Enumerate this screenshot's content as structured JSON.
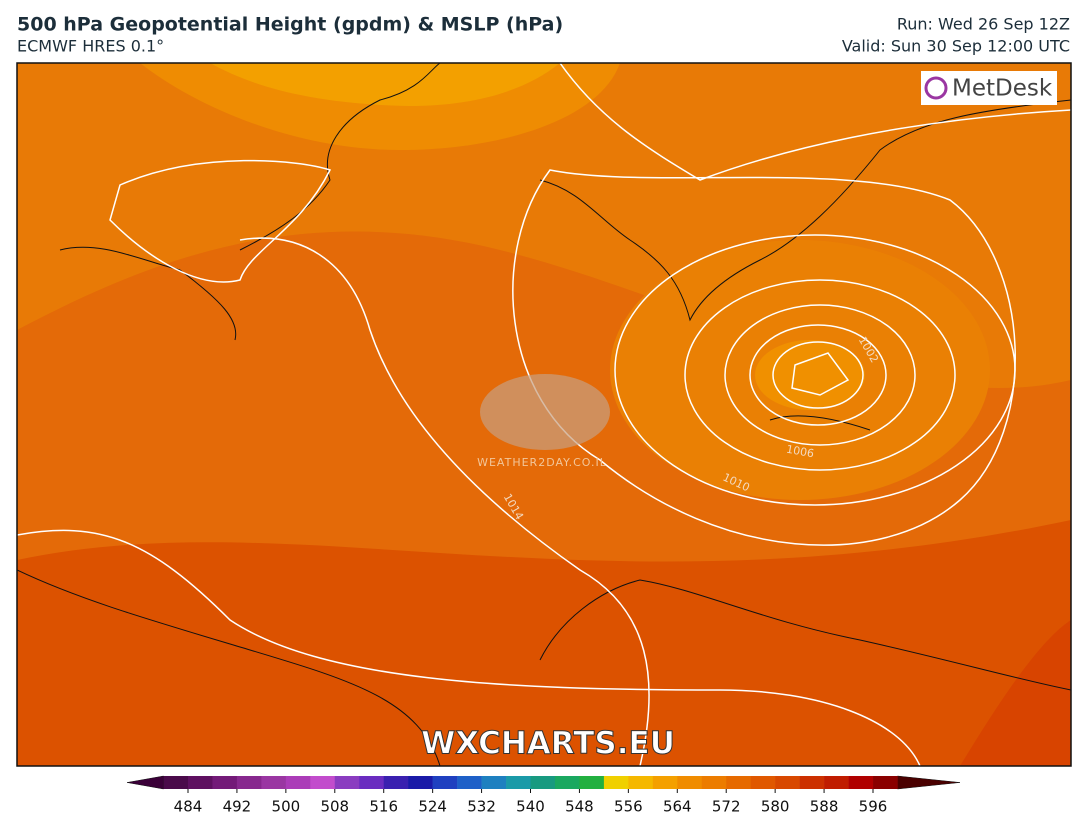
{
  "header": {
    "title": "500 hPa Geopotential Height (gpdm) & MSLP (hPa)",
    "subtitle": "ECMWF HRES 0.1°",
    "run": "Run: Wed 26 Sep 12Z",
    "valid": "Valid: Sun 30 Sep 12:00 UTC"
  },
  "map": {
    "isobar_labels": [
      "1014",
      "1010",
      "1006",
      "1002"
    ],
    "logo": "MetDesk",
    "watermark": "WEATHER2DAY.CO.IL",
    "footer": "WXCHARTS.EU"
  },
  "colorbar": {
    "ticks": [
      484,
      492,
      500,
      508,
      516,
      524,
      532,
      540,
      548,
      556,
      564,
      572,
      580,
      588,
      596
    ],
    "colors": [
      "#4a0a4a",
      "#5e1060",
      "#731a78",
      "#87288e",
      "#9a36a2",
      "#ab3cb8",
      "#c24ccc",
      "#8a3cc0",
      "#6a2cc0",
      "#3a20b0",
      "#1a1aa8",
      "#1f40c0",
      "#1e60c8",
      "#1e80c0",
      "#1a9aa8",
      "#189a80",
      "#1aa860",
      "#22b040",
      "#f0d000",
      "#f5b800",
      "#f4a000",
      "#f08c00",
      "#ec7c00",
      "#e66a00",
      "#e05800",
      "#d84800",
      "#cc3000",
      "#c01c00",
      "#b00000",
      "#8a0000"
    ]
  }
}
